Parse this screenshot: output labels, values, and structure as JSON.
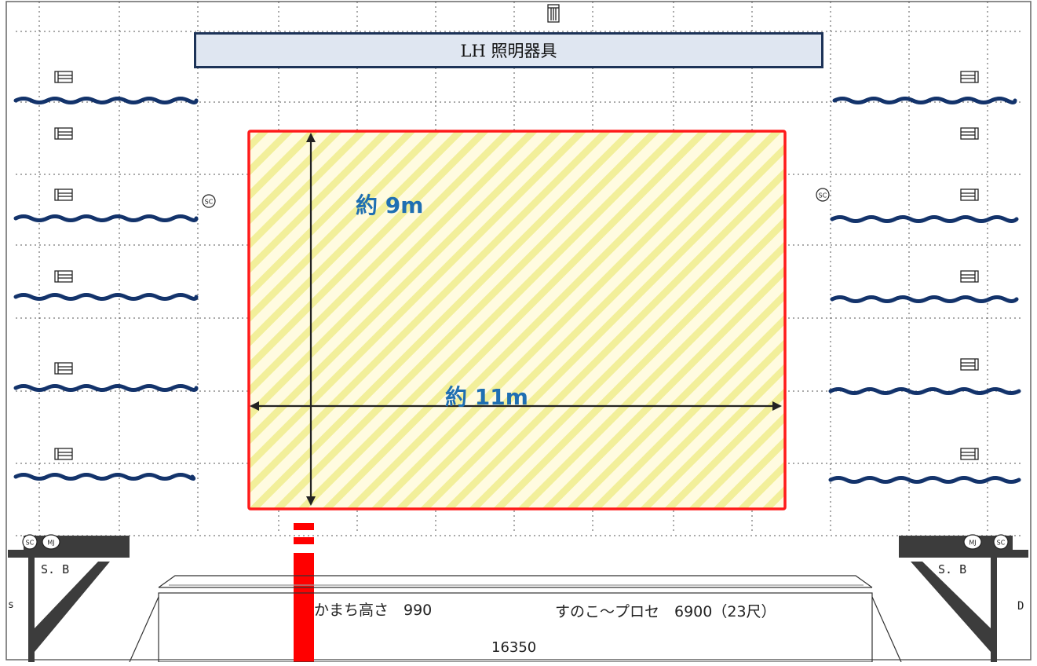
{
  "title": "LH 照明器具",
  "dimensions": {
    "height_label": "約 9m",
    "width_label": "約 11m"
  },
  "notes": {
    "kamachi": "かまち高さ　990",
    "sunoko": "すのこ～プロセ　6900（23尺）",
    "width_total": "16350"
  },
  "stage_marks": {
    "left_sb": "S. B",
    "right_sb": "S. B",
    "sc": "SC",
    "mj": "MJ",
    "left_edge_letter": "s",
    "right_edge_letter": "D"
  },
  "colors": {
    "area_outline": "#ff0000",
    "area_fill": "#fffbe0",
    "hatch": "#f2ef9a",
    "wave_line": "#13336b",
    "label_blue": "#1f6fb2",
    "title_fill": "#dfe6f1",
    "title_border": "#1d3358"
  },
  "icons": {
    "fixture": "light-fixture-icon",
    "sc": "sc-outlet-icon",
    "mj": "mj-outlet-icon"
  }
}
